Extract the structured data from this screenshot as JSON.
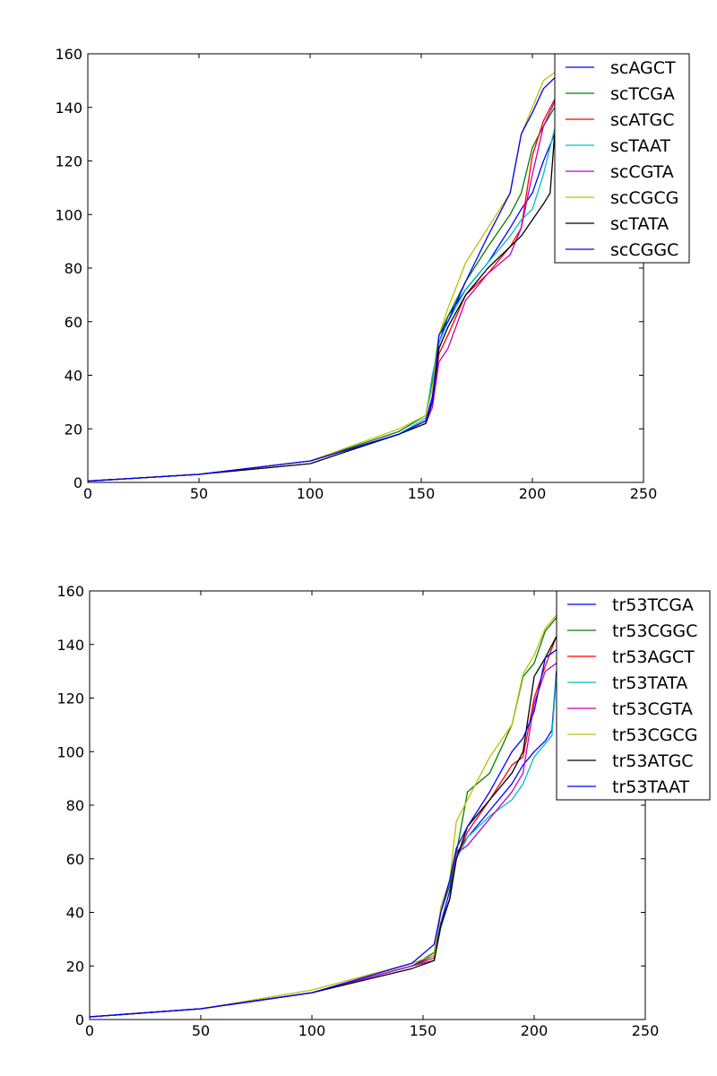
{
  "chart_data": [
    {
      "type": "line",
      "title": "",
      "xlabel": "",
      "ylabel": "",
      "xlim": [
        0,
        250
      ],
      "ylim": [
        0,
        160
      ],
      "xticks": [
        0,
        50,
        100,
        150,
        200,
        250
      ],
      "yticks": [
        0,
        20,
        40,
        60,
        80,
        100,
        120,
        140,
        160
      ],
      "grid": false,
      "legend_position": "upper-right",
      "series": [
        {
          "name": "scAGCT",
          "color": "#0000ff",
          "x": [
            0,
            50,
            100,
            140,
            152,
            155,
            158,
            162,
            170,
            180,
            190,
            195,
            200,
            205,
            210
          ],
          "y": [
            0.5,
            3,
            8,
            18,
            23,
            32,
            52,
            62,
            72,
            82,
            95,
            102,
            108,
            120,
            130
          ]
        },
        {
          "name": "scTCGA",
          "color": "#008000",
          "x": [
            0,
            50,
            100,
            140,
            152,
            155,
            158,
            162,
            170,
            180,
            190,
            195,
            200,
            205,
            210
          ],
          "y": [
            0.5,
            3,
            8,
            19,
            25,
            38,
            55,
            62,
            75,
            88,
            100,
            108,
            125,
            133,
            140
          ]
        },
        {
          "name": "scATGC",
          "color": "#ff0000",
          "x": [
            0,
            50,
            100,
            140,
            152,
            155,
            158,
            162,
            170,
            180,
            190,
            195,
            200,
            205,
            210
          ],
          "y": [
            0.5,
            3,
            8,
            18,
            23,
            30,
            48,
            55,
            70,
            78,
            88,
            95,
            122,
            135,
            143
          ]
        },
        {
          "name": "scTAAT",
          "color": "#00bfbf",
          "x": [
            0,
            50,
            100,
            140,
            152,
            155,
            158,
            162,
            170,
            180,
            190,
            195,
            200,
            205,
            210
          ],
          "y": [
            0.5,
            3,
            8,
            18,
            24,
            40,
            52,
            60,
            72,
            82,
            92,
            98,
            102,
            115,
            132
          ]
        },
        {
          "name": "scCGTA",
          "color": "#bf00bf",
          "x": [
            0,
            50,
            100,
            140,
            152,
            155,
            158,
            162,
            170,
            180,
            190,
            195,
            200,
            205,
            210
          ],
          "y": [
            0.5,
            3,
            8,
            18,
            22,
            28,
            45,
            50,
            68,
            78,
            85,
            95,
            115,
            133,
            142
          ]
        },
        {
          "name": "scCGCG",
          "color": "#bfbf00",
          "x": [
            0,
            50,
            100,
            140,
            152,
            155,
            158,
            162,
            170,
            180,
            190,
            195,
            200,
            205,
            210
          ],
          "y": [
            0.5,
            3,
            8,
            20,
            25,
            35,
            55,
            65,
            82,
            95,
            108,
            130,
            140,
            150,
            153
          ]
        },
        {
          "name": "scTATA",
          "color": "#000000",
          "x": [
            0,
            50,
            100,
            140,
            152,
            155,
            158,
            162,
            170,
            180,
            190,
            195,
            200,
            205,
            208,
            210
          ],
          "y": [
            0.5,
            3,
            7,
            18,
            22,
            30,
            50,
            58,
            70,
            80,
            88,
            92,
            98,
            104,
            108,
            130
          ]
        },
        {
          "name": "scCGGC",
          "color": "#0000ff",
          "x": [
            0,
            50,
            100,
            140,
            152,
            155,
            158,
            162,
            170,
            180,
            190,
            195,
            200,
            205,
            210
          ],
          "y": [
            0.5,
            3,
            8,
            18,
            23,
            30,
            55,
            60,
            75,
            92,
            108,
            130,
            138,
            147,
            151
          ]
        }
      ]
    },
    {
      "type": "line",
      "title": "",
      "xlabel": "",
      "ylabel": "",
      "xlim": [
        0,
        250
      ],
      "ylim": [
        0,
        160
      ],
      "xticks": [
        0,
        50,
        100,
        150,
        200,
        250
      ],
      "yticks": [
        0,
        20,
        40,
        60,
        80,
        100,
        120,
        140,
        160
      ],
      "grid": false,
      "legend_position": "upper-right",
      "series": [
        {
          "name": "tr53TCGA",
          "color": "#0000ff",
          "x": [
            0,
            50,
            100,
            145,
            155,
            158,
            162,
            165,
            170,
            180,
            190,
            195,
            200,
            205,
            208,
            210
          ],
          "y": [
            1,
            4,
            10,
            20,
            24,
            36,
            48,
            62,
            68,
            78,
            88,
            95,
            100,
            104,
            108,
            130
          ]
        },
        {
          "name": "tr53CGGC",
          "color": "#008000",
          "x": [
            0,
            50,
            100,
            145,
            155,
            158,
            162,
            165,
            170,
            180,
            190,
            195,
            200,
            205,
            210
          ],
          "y": [
            1,
            4,
            10,
            20,
            25,
            40,
            50,
            62,
            85,
            92,
            110,
            128,
            133,
            145,
            150
          ]
        },
        {
          "name": "tr53AGCT",
          "color": "#ff0000",
          "x": [
            0,
            50,
            100,
            145,
            155,
            158,
            162,
            165,
            170,
            180,
            190,
            195,
            200,
            205,
            210
          ],
          "y": [
            1,
            4,
            10,
            20,
            23,
            35,
            45,
            60,
            70,
            82,
            95,
            98,
            120,
            132,
            143
          ]
        },
        {
          "name": "tr53TATA",
          "color": "#00bfbf",
          "x": [
            0,
            50,
            100,
            145,
            155,
            158,
            162,
            165,
            170,
            180,
            190,
            195,
            200,
            205,
            208,
            210
          ],
          "y": [
            1,
            4,
            10,
            20,
            22,
            34,
            45,
            60,
            68,
            76,
            82,
            88,
            98,
            103,
            106,
            128
          ]
        },
        {
          "name": "tr53CGTA",
          "color": "#bf00bf",
          "x": [
            0,
            50,
            100,
            145,
            155,
            158,
            162,
            165,
            170,
            180,
            190,
            195,
            200,
            205,
            210
          ],
          "y": [
            1,
            4,
            10,
            20,
            22,
            36,
            45,
            62,
            65,
            75,
            85,
            92,
            118,
            130,
            133
          ]
        },
        {
          "name": "tr53CGCG",
          "color": "#bfbf00",
          "x": [
            0,
            50,
            100,
            145,
            155,
            158,
            162,
            165,
            170,
            180,
            190,
            195,
            200,
            205,
            210
          ],
          "y": [
            1,
            4,
            11,
            21,
            24,
            42,
            52,
            74,
            82,
            98,
            110,
            129,
            136,
            146,
            151
          ]
        },
        {
          "name": "tr53ATGC",
          "color": "#000000",
          "x": [
            0,
            50,
            100,
            145,
            155,
            158,
            162,
            165,
            170,
            180,
            190,
            195,
            200,
            205,
            210
          ],
          "y": [
            1,
            4,
            10,
            19,
            22,
            35,
            45,
            60,
            72,
            82,
            92,
            100,
            128,
            135,
            143
          ]
        },
        {
          "name": "tr53TAAT",
          "color": "#0000ff",
          "x": [
            0,
            50,
            100,
            145,
            155,
            158,
            162,
            165,
            170,
            180,
            190,
            195,
            200,
            205,
            210
          ],
          "y": [
            1,
            4,
            10,
            21,
            28,
            40,
            52,
            64,
            72,
            85,
            100,
            105,
            115,
            135,
            138
          ]
        }
      ]
    }
  ]
}
